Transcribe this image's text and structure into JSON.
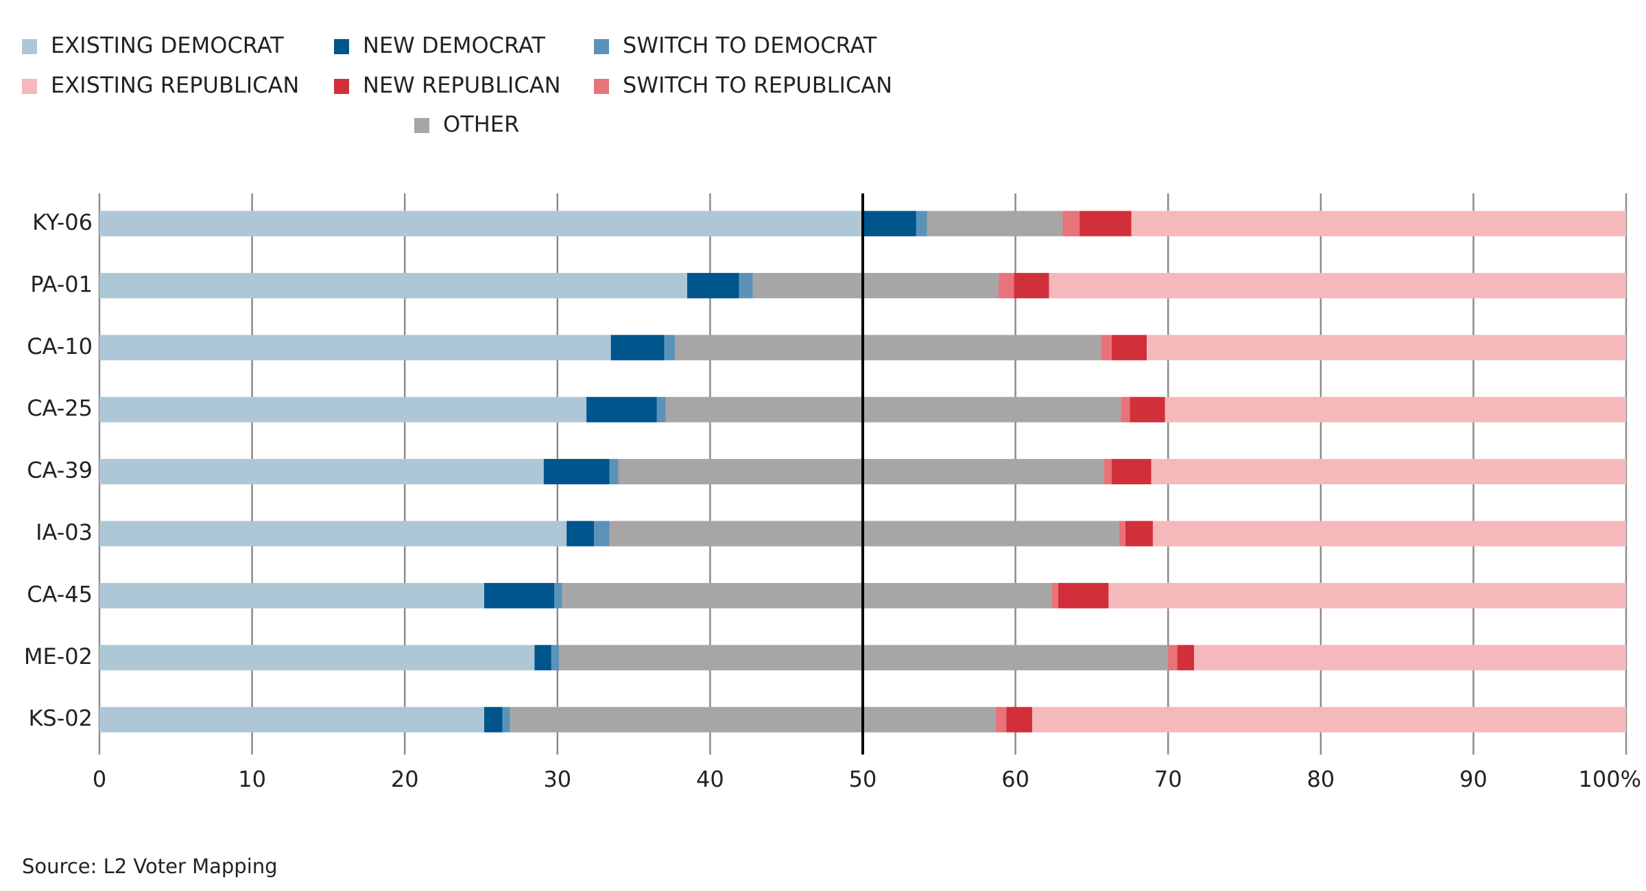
{
  "chart_data": {
    "type": "stacked-bar-horizontal",
    "categories": [
      "KY-06",
      "PA-01",
      "CA-10",
      "CA-25",
      "CA-39",
      "IA-03",
      "CA-45",
      "ME-02",
      "KS-02"
    ],
    "series": [
      {
        "name": "EXISTING DEMOCRAT",
        "color": "#adc7d6",
        "values": [
          50.0,
          38.5,
          33.5,
          31.9,
          29.1,
          30.6,
          25.2,
          28.5,
          25.2
        ]
      },
      {
        "name": "NEW DEMOCRAT",
        "color": "#00558c",
        "values": [
          3.5,
          3.4,
          3.5,
          4.6,
          4.3,
          1.8,
          4.6,
          1.1,
          1.2
        ]
      },
      {
        "name": "SWITCH TO DEMOCRAT",
        "color": "#5b93b8",
        "values": [
          0.7,
          0.9,
          0.7,
          0.6,
          0.6,
          1.0,
          0.5,
          0.5,
          0.5
        ]
      },
      {
        "name": "OTHER",
        "color": "#a7a5a6",
        "values": [
          8.9,
          16.1,
          27.9,
          29.8,
          31.8,
          33.4,
          32.1,
          39.9,
          31.8
        ]
      },
      {
        "name": "SWITCH TO REPUBLICAN",
        "color": "#e8737a",
        "values": [
          1.1,
          1.0,
          0.7,
          0.6,
          0.5,
          0.4,
          0.4,
          0.6,
          0.7
        ]
      },
      {
        "name": "NEW REPUBLICAN",
        "color": "#d1303a",
        "values": [
          3.4,
          2.3,
          2.3,
          2.3,
          2.6,
          1.8,
          3.3,
          1.1,
          1.7
        ]
      },
      {
        "name": "EXISTING REPUBLICAN",
        "color": "#f5b8bb",
        "values": [
          32.4,
          37.8,
          31.4,
          30.2,
          31.1,
          31.0,
          33.9,
          28.3,
          38.9
        ]
      }
    ],
    "xlim": [
      0,
      100
    ],
    "xticks": [
      0,
      10,
      20,
      30,
      40,
      50,
      60,
      70,
      80,
      90,
      {
        "value": 100,
        "label": "100%"
      }
    ],
    "reference_line": 50,
    "grid": true,
    "source": "Source: L2 Voter Mapping"
  }
}
